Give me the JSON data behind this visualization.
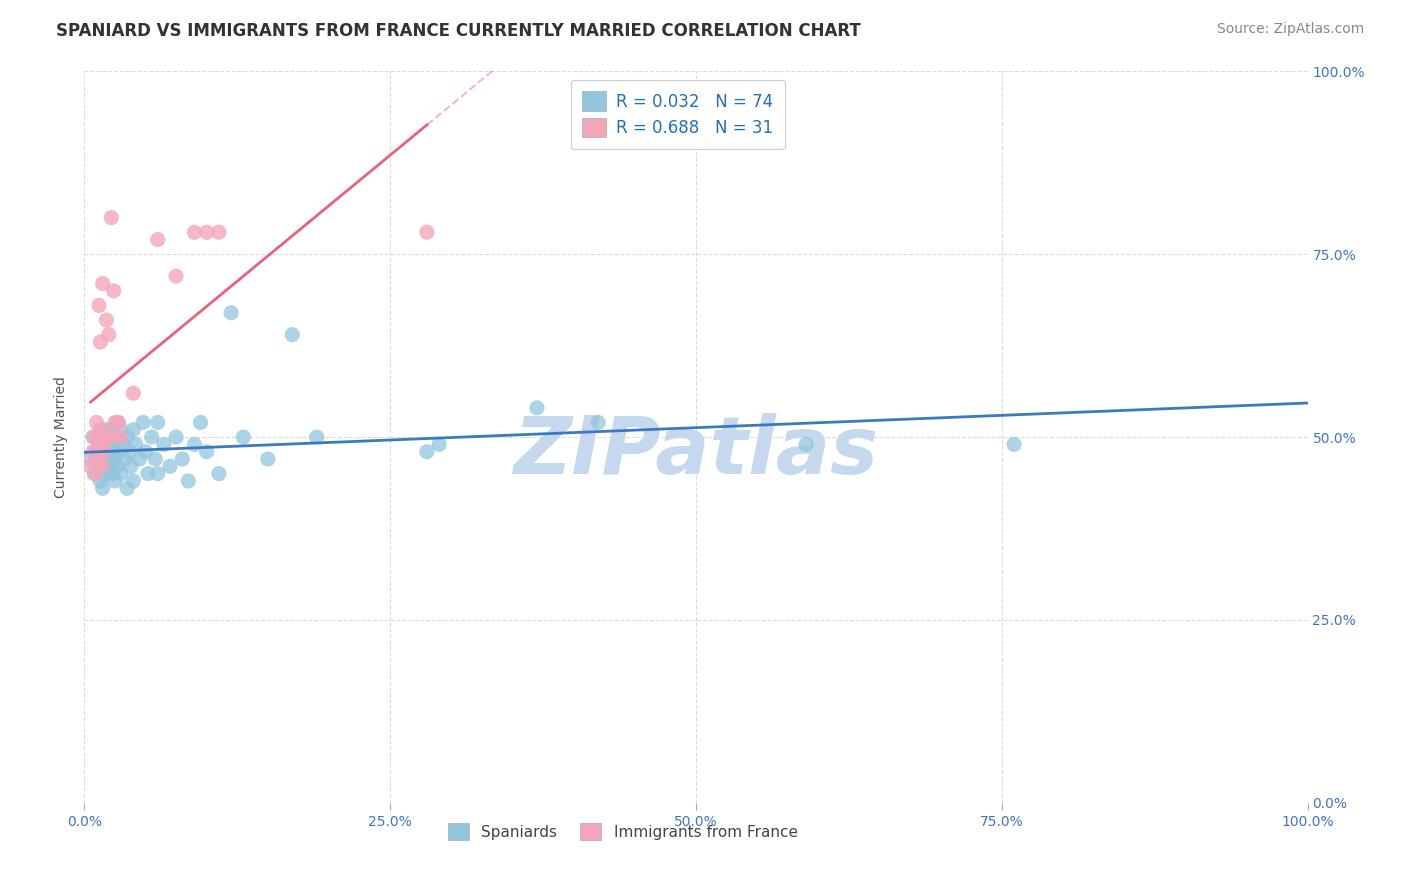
{
  "title": "SPANIARD VS IMMIGRANTS FROM FRANCE CURRENTLY MARRIED CORRELATION CHART",
  "source": "Source: ZipAtlas.com",
  "ylabel_text": "Currently Married",
  "x_min": 0.0,
  "x_max": 1.0,
  "y_min": 0.0,
  "y_max": 1.0,
  "x_ticks": [
    0.0,
    0.25,
    0.5,
    0.75,
    1.0
  ],
  "y_ticks": [
    0.0,
    0.25,
    0.5,
    0.75,
    1.0
  ],
  "x_tick_labels": [
    "0.0%",
    "25.0%",
    "50.0%",
    "75.0%",
    "100.0%"
  ],
  "y_tick_labels_right": [
    "0.0%",
    "25.0%",
    "50.0%",
    "75.0%",
    "100.0%"
  ],
  "blue_R": 0.032,
  "blue_N": 74,
  "pink_R": 0.688,
  "pink_N": 31,
  "blue_color": "#92c5de",
  "pink_color": "#f4a6b8",
  "blue_line_color": "#3a7abf",
  "pink_line_color": "#e8637a",
  "blue_scatter": [
    [
      0.005,
      0.47
    ],
    [
      0.007,
      0.5
    ],
    [
      0.008,
      0.45
    ],
    [
      0.01,
      0.48
    ],
    [
      0.01,
      0.46
    ],
    [
      0.012,
      0.49
    ],
    [
      0.012,
      0.47
    ],
    [
      0.013,
      0.51
    ],
    [
      0.013,
      0.44
    ],
    [
      0.013,
      0.46
    ],
    [
      0.015,
      0.5
    ],
    [
      0.015,
      0.48
    ],
    [
      0.015,
      0.45
    ],
    [
      0.015,
      0.43
    ],
    [
      0.016,
      0.49
    ],
    [
      0.016,
      0.47
    ],
    [
      0.017,
      0.51
    ],
    [
      0.018,
      0.49
    ],
    [
      0.018,
      0.46
    ],
    [
      0.019,
      0.48
    ],
    [
      0.019,
      0.45
    ],
    [
      0.02,
      0.5
    ],
    [
      0.02,
      0.47
    ],
    [
      0.021,
      0.49
    ],
    [
      0.021,
      0.46
    ],
    [
      0.022,
      0.51
    ],
    [
      0.023,
      0.48
    ],
    [
      0.023,
      0.45
    ],
    [
      0.024,
      0.5
    ],
    [
      0.025,
      0.47
    ],
    [
      0.025,
      0.44
    ],
    [
      0.026,
      0.49
    ],
    [
      0.027,
      0.52
    ],
    [
      0.027,
      0.46
    ],
    [
      0.028,
      0.48
    ],
    [
      0.03,
      0.51
    ],
    [
      0.03,
      0.45
    ],
    [
      0.032,
      0.49
    ],
    [
      0.033,
      0.47
    ],
    [
      0.035,
      0.5
    ],
    [
      0.035,
      0.43
    ],
    [
      0.037,
      0.48
    ],
    [
      0.038,
      0.46
    ],
    [
      0.04,
      0.51
    ],
    [
      0.04,
      0.44
    ],
    [
      0.042,
      0.49
    ],
    [
      0.045,
      0.47
    ],
    [
      0.048,
      0.52
    ],
    [
      0.05,
      0.48
    ],
    [
      0.052,
      0.45
    ],
    [
      0.055,
      0.5
    ],
    [
      0.058,
      0.47
    ],
    [
      0.06,
      0.52
    ],
    [
      0.06,
      0.45
    ],
    [
      0.065,
      0.49
    ],
    [
      0.07,
      0.46
    ],
    [
      0.075,
      0.5
    ],
    [
      0.08,
      0.47
    ],
    [
      0.085,
      0.44
    ],
    [
      0.09,
      0.49
    ],
    [
      0.095,
      0.52
    ],
    [
      0.1,
      0.48
    ],
    [
      0.11,
      0.45
    ],
    [
      0.12,
      0.67
    ],
    [
      0.13,
      0.5
    ],
    [
      0.15,
      0.47
    ],
    [
      0.17,
      0.64
    ],
    [
      0.19,
      0.5
    ],
    [
      0.28,
      0.48
    ],
    [
      0.29,
      0.49
    ],
    [
      0.37,
      0.54
    ],
    [
      0.42,
      0.52
    ],
    [
      0.59,
      0.49
    ],
    [
      0.76,
      0.49
    ]
  ],
  "pink_scatter": [
    [
      0.005,
      0.46
    ],
    [
      0.007,
      0.48
    ],
    [
      0.008,
      0.5
    ],
    [
      0.009,
      0.45
    ],
    [
      0.01,
      0.52
    ],
    [
      0.01,
      0.48
    ],
    [
      0.011,
      0.5
    ],
    [
      0.012,
      0.68
    ],
    [
      0.012,
      0.47
    ],
    [
      0.013,
      0.63
    ],
    [
      0.014,
      0.49
    ],
    [
      0.014,
      0.51
    ],
    [
      0.015,
      0.46
    ],
    [
      0.015,
      0.71
    ],
    [
      0.016,
      0.48
    ],
    [
      0.018,
      0.66
    ],
    [
      0.018,
      0.5
    ],
    [
      0.02,
      0.64
    ],
    [
      0.022,
      0.8
    ],
    [
      0.022,
      0.5
    ],
    [
      0.024,
      0.7
    ],
    [
      0.025,
      0.52
    ],
    [
      0.028,
      0.52
    ],
    [
      0.03,
      0.5
    ],
    [
      0.04,
      0.56
    ],
    [
      0.06,
      0.77
    ],
    [
      0.075,
      0.72
    ],
    [
      0.09,
      0.78
    ],
    [
      0.1,
      0.78
    ],
    [
      0.11,
      0.78
    ],
    [
      0.28,
      0.78
    ]
  ],
  "watermark": "ZIPatlas",
  "watermark_color": "#c5d8ee",
  "background_color": "#ffffff",
  "grid_color": "#cccccc",
  "title_fontsize": 12,
  "axis_label_fontsize": 10,
  "tick_fontsize": 10,
  "legend_fontsize": 12,
  "source_fontsize": 10
}
